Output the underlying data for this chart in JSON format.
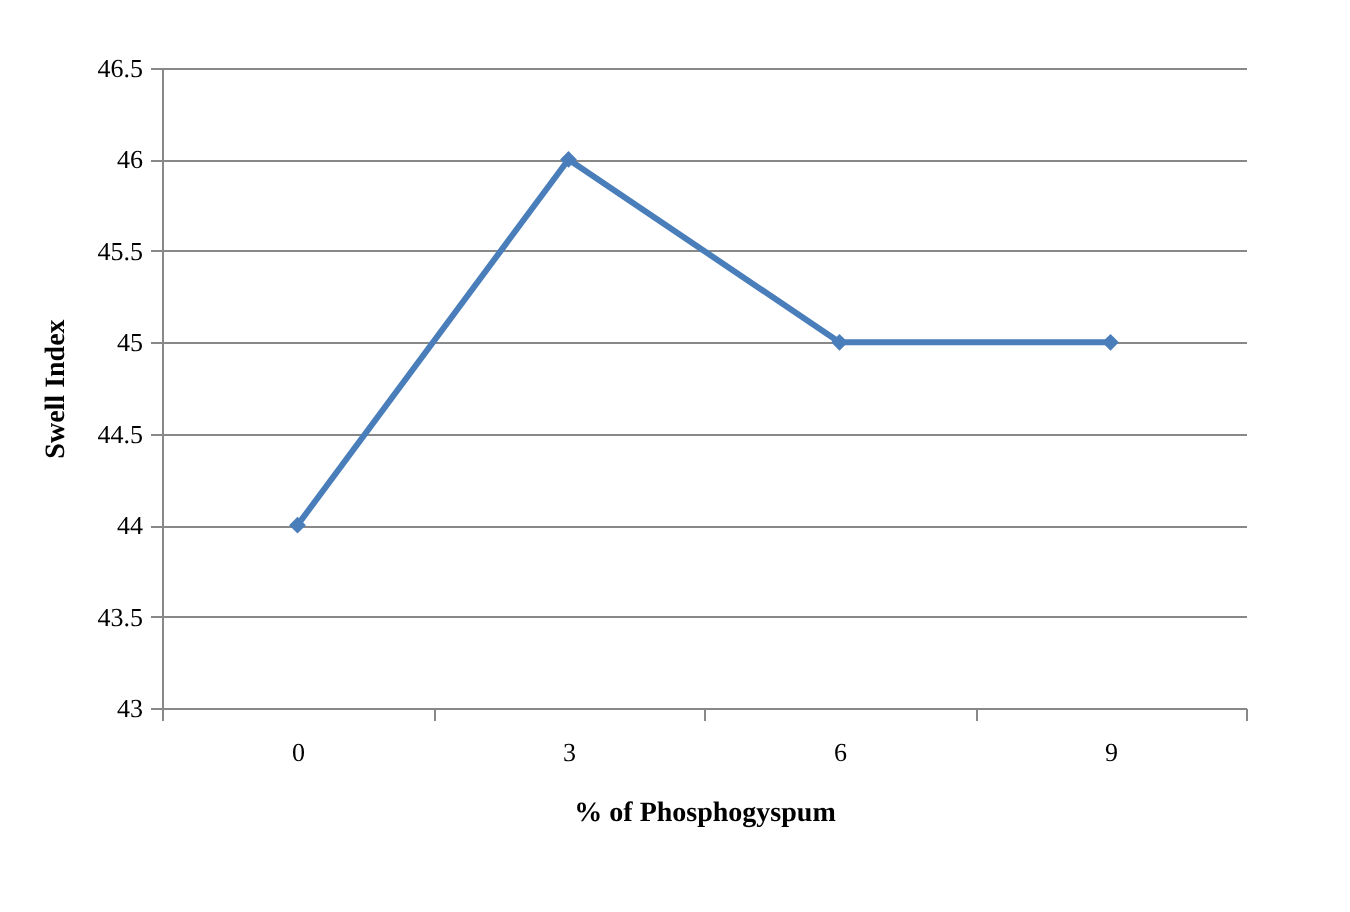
{
  "chart_data": {
    "type": "line",
    "xlabel": "% of Phosphogyspum",
    "ylabel": "Swell Index",
    "categories": [
      "0",
      "3",
      "6",
      "9"
    ],
    "series": [
      {
        "color": "#4a7ebb",
        "values": [
          44,
          46,
          45,
          45
        ]
      }
    ],
    "ylim": [
      43,
      46.5
    ],
    "yticks": [
      43,
      43.5,
      44,
      44.5,
      45,
      45.5,
      46,
      46.5
    ],
    "grid": "y",
    "legend": false,
    "marker": "diamond",
    "line_style": "solid"
  }
}
